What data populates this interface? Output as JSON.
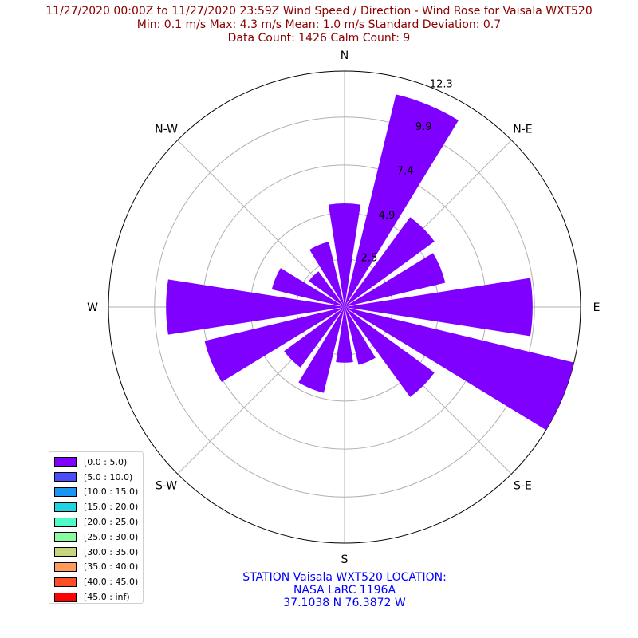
{
  "title": {
    "line1": "11/27/2020 00:00Z to 11/27/2020 23:59Z Wind Speed / Direction - Wind Rose for Vaisala WXT520",
    "line2": "Min: 0.1 m/s   Max: 4.3 m/s   Mean: 1.0 m/s  Standard Deviation: 0.7",
    "line3": "Data Count: 1426  Calm Count:  9"
  },
  "station": {
    "line1": "STATION Vaisala WXT520 LOCATION:",
    "line2": "NASA LaRC 1196A",
    "line3": "37.1038 N 76.3872 W"
  },
  "colors": {
    "title": "#8b0000",
    "station": "#0000ff",
    "bar": "#8000ff"
  },
  "legend": {
    "items": [
      {
        "label": "[0.0 : 5.0)",
        "color": "#8000ff"
      },
      {
        "label": "[5.0 : 10.0)",
        "color": "#4b4dfb"
      },
      {
        "label": "[10.0 : 15.0)",
        "color": "#1996f3"
      },
      {
        "label": "[15.0 : 20.0)",
        "color": "#1ed4e0"
      },
      {
        "label": "[20.0 : 25.0)",
        "color": "#4ffbc8"
      },
      {
        "label": "[25.0 : 30.0)",
        "color": "#88fba0"
      },
      {
        "label": "[30.0 : 35.0)",
        "color": "#c8d47e"
      },
      {
        "label": "[35.0 : 40.0)",
        "color": "#ff9a5a"
      },
      {
        "label": "[40.0 : 45.0)",
        "color": "#ff4d2a"
      },
      {
        "label": "[45.0 : inf)",
        "color": "#ff0000"
      }
    ]
  },
  "chart_data": {
    "type": "wind-rose",
    "title": "11/27/2020 00:00Z to 11/27/2020 23:59Z Wind Speed / Direction - Wind Rose for Vaisala WXT520",
    "direction_labels": [
      "N",
      "N-E",
      "E",
      "S-E",
      "S",
      "S-W",
      "W",
      "N-W"
    ],
    "radial_ticks": [
      "2.5",
      "4.9",
      "7.4",
      "9.9",
      "12.3"
    ],
    "r_max": 12.3,
    "grid": true,
    "legend_position": "lower-left",
    "series": [
      {
        "name": "[0.0 : 5.0)",
        "sectors_deg": [
          0,
          22.5,
          45,
          67.5,
          90,
          112.5,
          135,
          157.5,
          180,
          202.5,
          225,
          247.5,
          270,
          292.5,
          315,
          337.5
        ],
        "values": [
          5.4,
          11.4,
          5.8,
          5.4,
          9.8,
          12.3,
          5.8,
          3.1,
          2.9,
          4.6,
          3.9,
          7.5,
          9.3,
          3.9,
          2.3,
          3.5
        ]
      }
    ]
  }
}
